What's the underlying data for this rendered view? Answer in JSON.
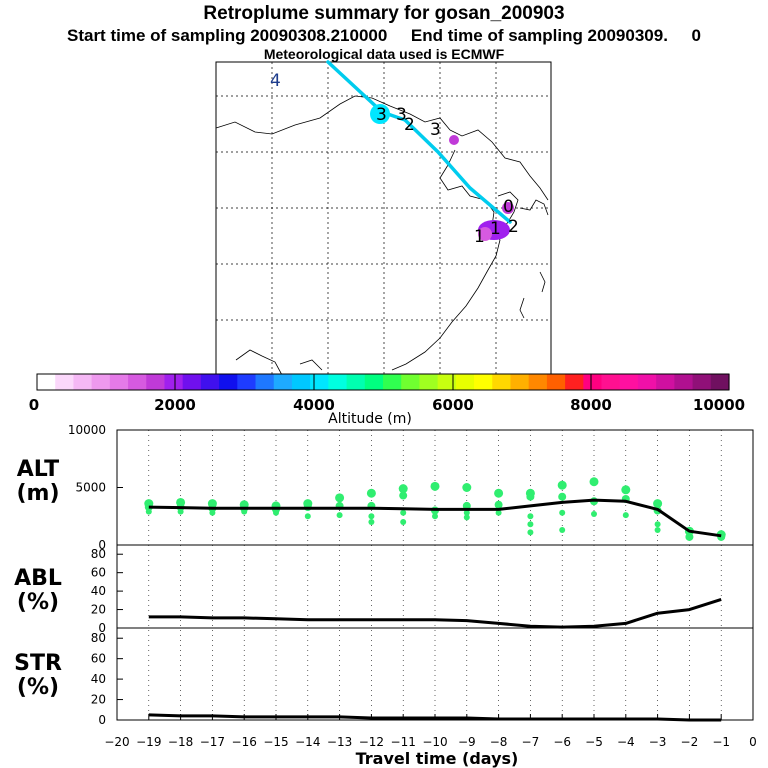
{
  "header": {
    "title": "Retroplume summary for gosan_200903",
    "sampling_line": "Start time of sampling 20090308.210000     End time of sampling 20090309.     0",
    "met_line": "Meteorological data used is ECMWF"
  },
  "colorbar": {
    "ticks": [
      "0",
      "2000",
      "4000",
      "6000",
      "8000",
      "10000"
    ],
    "label": "Altitude (m)",
    "colors": [
      "#ffffff",
      "#fbd8fb",
      "#f5b8f5",
      "#ee99ee",
      "#e57ae8",
      "#d65ae0",
      "#c03ad8",
      "#a020ee",
      "#7010ee",
      "#4010ee",
      "#1010ee",
      "#1e3cff",
      "#1e78ff",
      "#1eaaff",
      "#00c8ff",
      "#00e6ff",
      "#00ffe0",
      "#00ffb0",
      "#00ff80",
      "#30ff50",
      "#70ff30",
      "#a0ff20",
      "#c8ff10",
      "#e8ff00",
      "#ffff00",
      "#ffd800",
      "#ffb000",
      "#ff8800",
      "#ff6000",
      "#ff2020",
      "#ff0080",
      "#ff1090",
      "#ff10a0",
      "#f010a8",
      "#d010a0",
      "#b01090",
      "#901078",
      "#701060"
    ]
  },
  "map": {
    "trajectory_color": "#00ccee",
    "cluster_labels": [
      "4",
      "3",
      "3",
      "2",
      "3",
      "0",
      "1",
      "2",
      "1"
    ]
  },
  "panels": {
    "alt": {
      "label_line1": "ALT",
      "label_line2": "(m)"
    },
    "abl": {
      "label_line1": "ABL",
      "label_line2": "(%)"
    },
    "str": {
      "label_line1": "STR",
      "label_line2": "(%)"
    }
  },
  "chart_data": [
    {
      "type": "line",
      "title": "ALT (m)",
      "ylim": [
        0,
        10000
      ],
      "yticks": [
        0,
        5000,
        10000
      ],
      "x": [
        -19,
        -18,
        -17,
        -16,
        -15,
        -14,
        -13,
        -12,
        -11,
        -10,
        -9,
        -8,
        -7,
        -6,
        -5,
        -4,
        -3,
        -2,
        -1
      ],
      "mean_values": [
        3300,
        3250,
        3200,
        3200,
        3200,
        3200,
        3200,
        3200,
        3150,
        3100,
        3100,
        3100,
        3400,
        3700,
        3900,
        3800,
        3100,
        1200,
        800
      ],
      "scatter_color": "#30ee70",
      "cluster_points": [
        {
          "x": -19,
          "y": [
            3600,
            3300,
            2900
          ]
        },
        {
          "x": -18,
          "y": [
            3700,
            3300,
            2900
          ]
        },
        {
          "x": -17,
          "y": [
            3600,
            3200,
            2800
          ]
        },
        {
          "x": -16,
          "y": [
            3500,
            3200,
            2900
          ]
        },
        {
          "x": -15,
          "y": [
            3400,
            3100,
            2800
          ]
        },
        {
          "x": -14,
          "y": [
            3600,
            3300,
            2500
          ]
        },
        {
          "x": -13,
          "y": [
            4100,
            3400,
            2600
          ]
        },
        {
          "x": -12,
          "y": [
            4500,
            3400,
            2500,
            2000
          ]
        },
        {
          "x": -11,
          "y": [
            4900,
            4300,
            2800,
            2000
          ]
        },
        {
          "x": -10,
          "y": [
            5100,
            3000,
            2500
          ]
        },
        {
          "x": -9,
          "y": [
            5000,
            3400,
            2800,
            2400
          ]
        },
        {
          "x": -8,
          "y": [
            4500,
            3500,
            2800
          ]
        },
        {
          "x": -7,
          "y": [
            4500,
            4200,
            2500,
            1800,
            1100
          ]
        },
        {
          "x": -6,
          "y": [
            5200,
            4200,
            2800,
            1300
          ]
        },
        {
          "x": -5,
          "y": [
            5500,
            3800,
            2700
          ]
        },
        {
          "x": -4,
          "y": [
            4800,
            4000,
            2600
          ]
        },
        {
          "x": -3,
          "y": [
            3600,
            3000,
            1800,
            1300
          ]
        },
        {
          "x": -2,
          "y": [
            1200,
            700
          ]
        },
        {
          "x": -1,
          "y": [
            900,
            700
          ]
        }
      ]
    },
    {
      "type": "line",
      "title": "ABL (%)",
      "ylim": [
        0,
        90
      ],
      "yticks": [
        0,
        20,
        40,
        60,
        80
      ],
      "x": [
        -19,
        -18,
        -17,
        -16,
        -15,
        -14,
        -13,
        -12,
        -11,
        -10,
        -9,
        -8,
        -7,
        -6,
        -5,
        -4,
        -3,
        -2,
        -1
      ],
      "values": [
        12,
        12,
        11,
        11,
        10,
        9,
        9,
        9,
        9,
        9,
        8,
        5,
        2,
        1,
        2,
        5,
        16,
        20,
        31
      ]
    },
    {
      "type": "line",
      "title": "STR (%)",
      "ylim": [
        0,
        90
      ],
      "yticks": [
        0,
        20,
        40,
        60,
        80
      ],
      "x": [
        -19,
        -18,
        -17,
        -16,
        -15,
        -14,
        -13,
        -12,
        -11,
        -10,
        -9,
        -8,
        -7,
        -6,
        -5,
        -4,
        -3,
        -2,
        -1
      ],
      "values": [
        5,
        4,
        4,
        3,
        3,
        3,
        3,
        2,
        2,
        2,
        2,
        1,
        1,
        1,
        1,
        1,
        1,
        0,
        0
      ],
      "xlabel": "Travel time (days)",
      "xticks": [
        -20,
        -19,
        -18,
        -17,
        -16,
        -15,
        -14,
        -13,
        -12,
        -11,
        -10,
        -9,
        -8,
        -7,
        -6,
        -5,
        -4,
        -3,
        -2,
        -1,
        0
      ]
    }
  ]
}
